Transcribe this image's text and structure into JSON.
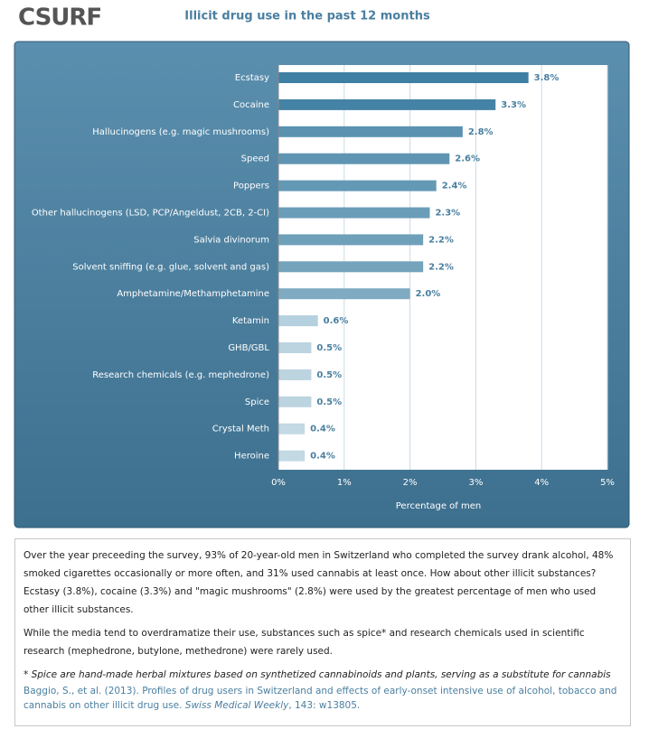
{
  "logo": "CSURF",
  "chart_data": {
    "type": "bar",
    "orientation": "horizontal",
    "title": "Illicit drug use in the past 12 months",
    "categories": [
      "Ecstasy",
      "Cocaine",
      "Hallucinogens (e.g. magic mushrooms)",
      "Speed",
      "Poppers",
      "Other hallucinogens (LSD, PCP/Angeldust, 2CB, 2-CI)",
      "Salvia divinorum",
      "Solvent sniffing (e.g. glue, solvent and gas)",
      "Amphetamine/Methamphetamine",
      "Ketamin",
      "GHB/GBL",
      "Research chemicals (e.g. mephedrone)",
      "Spice",
      "Crystal Meth",
      "Heroine"
    ],
    "values": [
      3.8,
      3.3,
      2.8,
      2.6,
      2.4,
      2.3,
      2.2,
      2.2,
      2.0,
      0.6,
      0.5,
      0.5,
      0.5,
      0.4,
      0.4
    ],
    "value_labels": [
      "3.8%",
      "3.3%",
      "2.8%",
      "2.6%",
      "2.4%",
      "2.3%",
      "2.2%",
      "2.2%",
      "2.0%",
      "0.6%",
      "0.5%",
      "0.5%",
      "0.5%",
      "0.4%",
      "0.4%"
    ],
    "colors": [
      "#3f7fa3",
      "#4583a6",
      "#5a92b0",
      "#5f95b2",
      "#6499b5",
      "#6a9db8",
      "#6fa0ba",
      "#74a3bc",
      "#7fabc2",
      "#b5d0de",
      "#bcd4e0",
      "#bcd4e0",
      "#bcd4e0",
      "#c3d9e4",
      "#c3d9e4"
    ],
    "xlim": [
      0,
      5
    ],
    "xticks": [
      {
        "value": 0,
        "label": "0%"
      },
      {
        "value": 1,
        "label": "1%"
      },
      {
        "value": 2,
        "label": "2%"
      },
      {
        "value": 3,
        "label": "3%"
      },
      {
        "value": 4,
        "label": "4%"
      },
      {
        "value": 5,
        "label": "5%"
      }
    ],
    "xlabel": "Percentage of men",
    "grid": true
  },
  "description": {
    "paragraphs": [
      "Over the year preceeding the survey, 93% of 20-year-old men in Switzerland who completed the survey drank alcohol, 48% smoked cigarettes occasionally or more often, and 31% used cannabis at least once. How about other illicit substances? Ecstasy (3.8%), cocaine (3.3%) and \"magic mushrooms\" (2.8%) were used by the greatest percentage of men who used other illicit substances.",
      "While the media tend to overdramatize their use, substances such as spice* and research chemicals used in scientific research (mephedrone, butylone, methedrone) were rarely used."
    ],
    "footnote": "* Spice are hand-made herbal mixtures based on synthetized cannabinoids and plants, serving as a substitute for cannabis",
    "citation": {
      "text": "Baggio, S., et al. (2013). Profiles of drug users in Switzerland and effects of early-onset intensive use of alcohol, tobacco and cannabis on other illicit drug use. ",
      "journal": "Swiss Medical Weekly",
      "details": ", 143: w13805."
    }
  }
}
